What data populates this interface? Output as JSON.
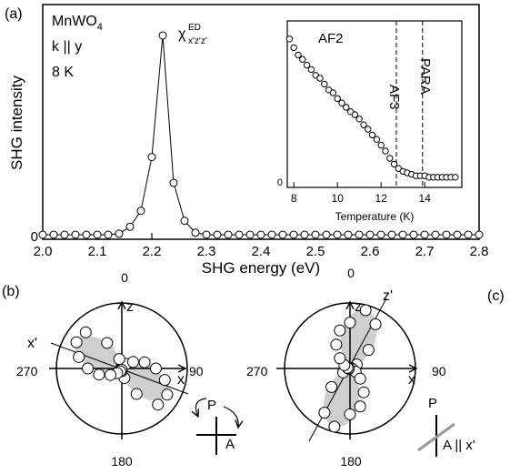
{
  "panel_labels": {
    "a": "(a)",
    "b": "(b)",
    "c": "(c)"
  },
  "main": {
    "info": {
      "material": "MnWO",
      "material_sub": "4",
      "k_dir": "k || y",
      "temp": "8 K"
    },
    "annotation": {
      "base": "χ",
      "sup": "ED",
      "sub": "x'z'z'"
    }
  },
  "inset": {
    "phase_af2": "AF2",
    "phase_af3": "AF3",
    "phase_para": "PARA"
  },
  "polar": {
    "angles": {
      "top": "0",
      "right": "90",
      "bottom": "180",
      "left": "270"
    },
    "b": {
      "axis_z": "z",
      "axis_x": "x",
      "axis_xp": "x'",
      "P": "P",
      "A": "A"
    },
    "c": {
      "axis_z": "z",
      "axis_zp": "z'",
      "axis_x": "x",
      "P": "P",
      "A": "A || x'"
    }
  },
  "colors": {
    "lobe_fill": "#cfcfcf",
    "marker_fill": "#ffffff",
    "line": "#000000",
    "analyzer_gray": "#999999"
  },
  "chart_data": [
    {
      "type": "scatter",
      "xlabel": "SHG energy (eV)",
      "ylabel": "SHG intensity",
      "xlim": [
        2.0,
        2.8
      ],
      "ylim": [
        0,
        1.0
      ],
      "x_ticks": [
        "2.0",
        "2.1",
        "2.2",
        "2.3",
        "2.4",
        "2.5",
        "2.6",
        "2.7",
        "2.8"
      ],
      "y_ticks": [
        "0"
      ],
      "x": [
        2.0,
        2.02,
        2.04,
        2.06,
        2.08,
        2.1,
        2.12,
        2.14,
        2.16,
        2.18,
        2.2,
        2.22,
        2.24,
        2.26,
        2.28,
        2.3,
        2.32,
        2.34,
        2.36,
        2.38,
        2.4,
        2.42,
        2.44,
        2.46,
        2.48,
        2.5,
        2.52,
        2.54,
        2.56,
        2.58,
        2.6,
        2.62,
        2.64,
        2.66,
        2.68,
        2.7,
        2.72,
        2.74,
        2.76,
        2.78,
        2.8
      ],
      "values": [
        0,
        0,
        0,
        0,
        0,
        0,
        0,
        0.005,
        0.04,
        0.12,
        0.39,
        1.0,
        0.26,
        0.07,
        0.01,
        0,
        0,
        0,
        0,
        0,
        0,
        0,
        0,
        0,
        0,
        0,
        0,
        0,
        0,
        0,
        0,
        0,
        0,
        0,
        0,
        0,
        0,
        0,
        0,
        0,
        0
      ],
      "line_through_points": true
    },
    {
      "type": "scatter",
      "xlabel": "Temperature (K)",
      "ylabel": "",
      "xlim": [
        7.7,
        15.7
      ],
      "ylim": [
        0,
        1.0
      ],
      "x_ticks": [
        "8",
        "10",
        "12",
        "14"
      ],
      "y_ticks": [
        "0"
      ],
      "transitions": [
        12.7,
        13.9
      ],
      "x": [
        7.8,
        8.0,
        8.2,
        8.4,
        8.6,
        8.8,
        9.0,
        9.2,
        9.4,
        9.6,
        9.8,
        10.0,
        10.2,
        10.4,
        10.6,
        10.8,
        11.0,
        11.2,
        11.4,
        11.6,
        11.8,
        12.0,
        12.2,
        12.4,
        12.6,
        12.8,
        13.0,
        13.2,
        13.4,
        13.6,
        13.8,
        14.0,
        14.2,
        14.4,
        14.6,
        14.8,
        15.0,
        15.2,
        15.4
      ],
      "values": [
        0.97,
        0.91,
        0.86,
        0.83,
        0.79,
        0.76,
        0.72,
        0.7,
        0.66,
        0.62,
        0.6,
        0.56,
        0.53,
        0.5,
        0.47,
        0.45,
        0.42,
        0.38,
        0.35,
        0.31,
        0.28,
        0.24,
        0.2,
        0.15,
        0.11,
        0.08,
        0.06,
        0.05,
        0.04,
        0.03,
        0.03,
        0.03,
        0.02,
        0.02,
        0.02,
        0.02,
        0.02,
        0.02,
        0.02
      ]
    },
    {
      "type": "scatter",
      "polar": true,
      "angles_deg": [
        0,
        15,
        30,
        45,
        60,
        75,
        90,
        105,
        120,
        135,
        150,
        165,
        180,
        195,
        210,
        225,
        240,
        255,
        270,
        285,
        300,
        315,
        330,
        345
      ],
      "values": [
        0.04,
        0.02,
        0.05,
        0.1,
        0.2,
        0.36,
        0.52,
        0.68,
        0.8,
        0.78,
        0.45,
        0.15,
        0.04,
        0.02,
        0.05,
        0.1,
        0.2,
        0.36,
        0.52,
        0.68,
        0.8,
        0.78,
        0.45,
        0.15
      ]
    },
    {
      "type": "scatter",
      "polar": true,
      "angles_deg": [
        0,
        15,
        30,
        45,
        60,
        75,
        90,
        105,
        120,
        135,
        150,
        165,
        180,
        195,
        210,
        225,
        240,
        255,
        270,
        285,
        300,
        315,
        330,
        345
      ],
      "values": [
        0.7,
        0.92,
        0.78,
        0.4,
        0.12,
        0.02,
        0.02,
        0.04,
        0.1,
        0.22,
        0.42,
        0.6,
        0.7,
        0.92,
        0.78,
        0.4,
        0.12,
        0.02,
        0.02,
        0.04,
        0.1,
        0.22,
        0.42,
        0.6
      ]
    }
  ]
}
